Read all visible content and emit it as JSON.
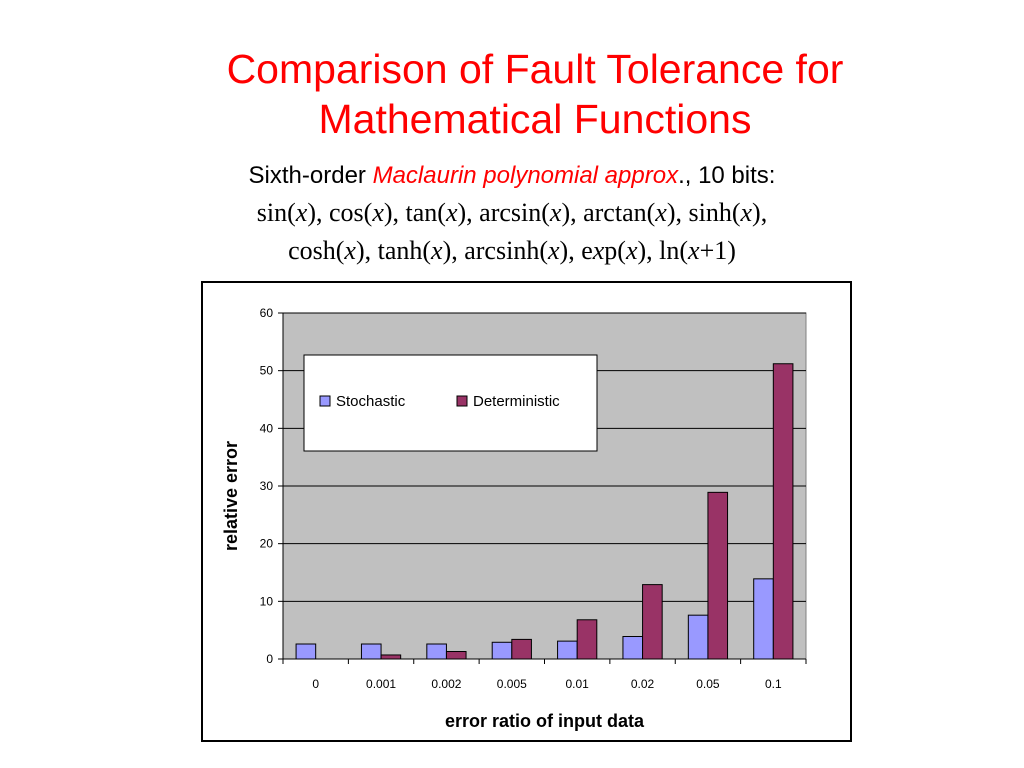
{
  "slide": {
    "title": "Comparison of Fault Tolerance for Mathematical Functions",
    "subtitle_pre": "Sixth-order ",
    "subtitle_accent": "Maclaurin polynomial approx",
    "subtitle_post": "., 10 bits:",
    "functions_line1": "sin(x), cos(x), tan(x), arcsin(x), arctan(x), sinh(x),",
    "functions_line2": "cosh(x), tanh(x), arcsinh(x), exp(x), ln(x+1)"
  },
  "colors": {
    "title": "#ff0000",
    "plot_background": "#c0c0c0",
    "stochastic": "#9999ff",
    "deterministic": "#993366"
  },
  "chart_data": {
    "type": "bar",
    "xlabel": "error ratio of input data",
    "ylabel": "relative error",
    "categories": [
      "0",
      "0.001",
      "0.002",
      "0.005",
      "0.01",
      "0.02",
      "0.05",
      "0.1"
    ],
    "ylim": [
      0,
      60
    ],
    "yticks": [
      0,
      10,
      20,
      30,
      40,
      50,
      60
    ],
    "grid": true,
    "legend_position": "top-left",
    "series": [
      {
        "name": "Stochastic",
        "color": "#9999ff",
        "values": [
          2.6,
          2.6,
          2.6,
          2.9,
          3.1,
          3.9,
          7.6,
          13.9
        ]
      },
      {
        "name": "Deterministic",
        "color": "#993366",
        "values": [
          0,
          0.7,
          1.3,
          3.4,
          6.8,
          12.9,
          28.9,
          51.2
        ]
      }
    ]
  }
}
